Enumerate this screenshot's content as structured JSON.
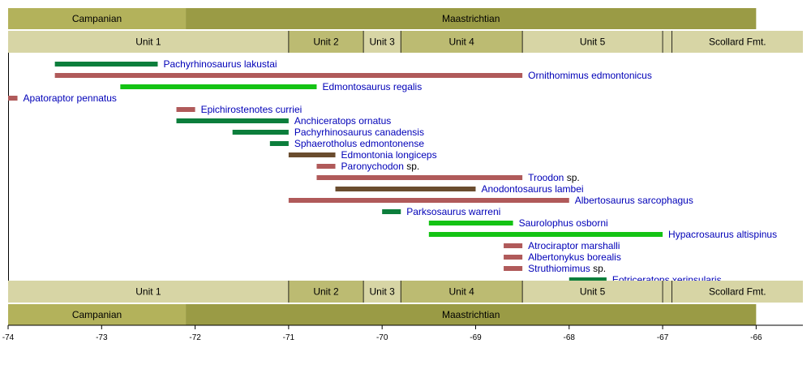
{
  "chart_data": {
    "type": "timeline",
    "title": "",
    "xlabel": "",
    "ylabel": "",
    "xlim": [
      -74,
      -65.5
    ],
    "x_ticks": [
      -74,
      -73,
      -72,
      -71,
      -70,
      -69,
      -68,
      -67,
      -66
    ],
    "x_tick_labels": [
      "-74",
      "-73",
      "-72",
      "-71",
      "-70",
      "-69",
      "-68",
      "-67",
      "-66"
    ],
    "grid": false,
    "colors": {
      "campanian": "#b3b25b",
      "maastrichtian": "#9a9b45",
      "unit_light": "#d7d5a5",
      "unit_dark": "#bcbb72",
      "theropod": "#b05a5a",
      "ceratopsian": "#0c7e3c",
      "ornithopod": "#14c314",
      "ankylosaur": "#6a4c2e",
      "label_text": "#0000b8"
    },
    "stages": [
      {
        "name": "Campanian",
        "start": -74,
        "end": -72.1,
        "color": "campanian"
      },
      {
        "name": "Maastrichtian",
        "start": -72.1,
        "end": -66,
        "color": "maastrichtian"
      }
    ],
    "units": [
      {
        "name": "Unit 1",
        "start": -74,
        "end": -71,
        "color": "unit_light",
        "text_color": "#000000"
      },
      {
        "name": "Unit 2",
        "start": -71,
        "end": -70.2,
        "color": "unit_dark",
        "text_color": "#000000"
      },
      {
        "name": "Unit 3",
        "start": -70.2,
        "end": -69.8,
        "color": "unit_light",
        "text_color": "#000000"
      },
      {
        "name": "Unit 4",
        "start": -69.8,
        "end": -68.5,
        "color": "unit_dark",
        "text_color": "#000000"
      },
      {
        "name": "Unit 5",
        "start": -68.5,
        "end": -67,
        "color": "unit_light",
        "text_color": "#000000"
      },
      {
        "name": "",
        "start": -67,
        "end": -66.9,
        "color": "unit_light",
        "text_color": "#000000"
      },
      {
        "name": "Scollard Fmt.",
        "start": -66.9,
        "end": -65.5,
        "color": "unit_light",
        "text_color": "#0000b8"
      }
    ],
    "series": [
      {
        "genus": "Pachyrhinosaurus lakustai",
        "suffix": "",
        "start": -73.5,
        "end": -72.4,
        "group": "ceratopsian"
      },
      {
        "genus": "Ornithomimus edmontonicus",
        "suffix": "",
        "start": -73.5,
        "end": -68.5,
        "group": "theropod"
      },
      {
        "genus": "Edmontosaurus regalis",
        "suffix": "",
        "start": -72.8,
        "end": -70.7,
        "group": "ornithopod"
      },
      {
        "genus": "Apatoraptor pennatus",
        "suffix": "",
        "start": -74,
        "end": -73.9,
        "group": "theropod"
      },
      {
        "genus": "Epichirostenotes curriei",
        "suffix": "",
        "start": -72.2,
        "end": -72,
        "group": "theropod"
      },
      {
        "genus": "Anchiceratops ornatus",
        "suffix": "",
        "start": -72.2,
        "end": -71,
        "group": "ceratopsian"
      },
      {
        "genus": "Pachyrhinosaurus canadensis",
        "suffix": "",
        "start": -71.6,
        "end": -71,
        "group": "ceratopsian"
      },
      {
        "genus": "Sphaerotholus edmontonense",
        "suffix": "",
        "start": -71.2,
        "end": -71,
        "group": "ceratopsian"
      },
      {
        "genus": "Edmontonia longiceps",
        "suffix": "",
        "start": -71,
        "end": -70.5,
        "group": "ankylosaur"
      },
      {
        "genus": "Paronychodon",
        "suffix": "sp.",
        "start": -70.7,
        "end": -70.5,
        "group": "theropod"
      },
      {
        "genus": "Troodon",
        "suffix": "sp.",
        "start": -70.7,
        "end": -68.5,
        "group": "theropod"
      },
      {
        "genus": "Anodontosaurus lambei",
        "suffix": "",
        "start": -70.5,
        "end": -69,
        "group": "ankylosaur"
      },
      {
        "genus": "Albertosaurus sarcophagus",
        "suffix": "",
        "start": -71,
        "end": -68,
        "group": "theropod"
      },
      {
        "genus": "Parksosaurus warreni",
        "suffix": "",
        "start": -70,
        "end": -69.8,
        "group": "ceratopsian"
      },
      {
        "genus": "Saurolophus osborni",
        "suffix": "",
        "start": -69.5,
        "end": -68.6,
        "group": "ornithopod"
      },
      {
        "genus": "Hypacrosaurus altispinus",
        "suffix": "",
        "start": -69.5,
        "end": -67,
        "group": "ornithopod"
      },
      {
        "genus": "Atrociraptor marshalli",
        "suffix": "",
        "start": -68.7,
        "end": -68.5,
        "group": "theropod"
      },
      {
        "genus": "Albertonykus borealis",
        "suffix": "",
        "start": -68.7,
        "end": -68.5,
        "group": "theropod"
      },
      {
        "genus": "Struthiomimus",
        "suffix": "sp.",
        "start": -68.7,
        "end": -68.5,
        "group": "theropod"
      },
      {
        "genus": "Eotriceratops xerinsularis",
        "suffix": "",
        "start": -68,
        "end": -67.6,
        "group": "ceratopsian"
      }
    ]
  }
}
